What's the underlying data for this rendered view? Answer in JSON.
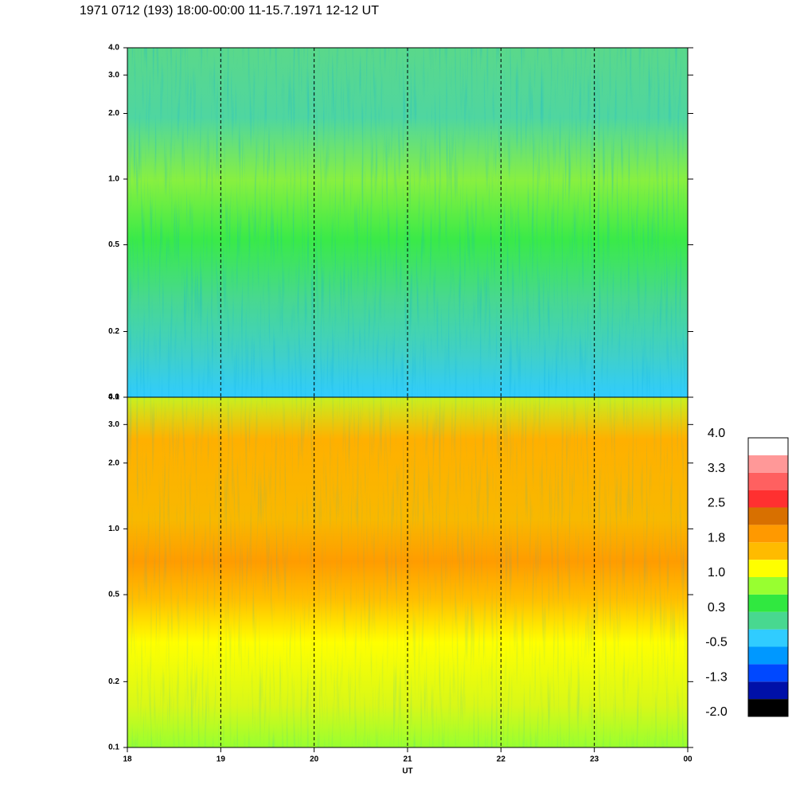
{
  "chart_data": {
    "type": "spectrogram",
    "title": "1971 0712 (193) 18:00-00:00 11-15.7.1971  12-12 UT",
    "xlabel": "UT",
    "xlim": [
      18,
      24
    ],
    "xticks": [
      18,
      19,
      20,
      21,
      22,
      23,
      {
        "value": 24,
        "label": "00"
      }
    ],
    "log_y": true,
    "grid": true,
    "panels": [
      {
        "ylim": [
          0.1,
          4
        ],
        "yticks": [
          0.1,
          0.2,
          0.5,
          {
            "value": 1,
            "label": "1.0"
          },
          {
            "value": 2,
            "label": "2.0"
          },
          {
            "value": 3,
            "label": "3.0"
          },
          {
            "value": 4,
            "label": "4.0"
          }
        ]
      },
      {
        "ylim": [
          0.1,
          4
        ],
        "yticks": [
          0.1,
          0.2,
          0.5,
          {
            "value": 1,
            "label": "1.0"
          },
          {
            "value": 2,
            "label": "2.0"
          },
          {
            "value": 3,
            "label": "3.0"
          },
          {
            "value": 4,
            "label": "4.0"
          }
        ]
      }
    ],
    "colorbar": {
      "lim": [
        -2,
        4
      ],
      "ticks": [
        {
          "value": 4,
          "label": "4.0"
        },
        {
          "value": 3.25,
          "label": "3.3"
        },
        2.5,
        {
          "value": 1.75,
          "label": "1.8"
        },
        {
          "value": 1,
          "label": "1.0"
        },
        {
          "value": 0.25,
          "label": "0.3"
        },
        -0.5,
        {
          "value": -1.25,
          "label": "-1.3"
        },
        {
          "value": -2,
          "label": "-2.0"
        }
      ],
      "colors": [
        "#000000",
        "#0010a8",
        "#0048ff",
        "#0098ff",
        "#30ccff",
        "#48d890",
        "#30e840",
        "#98ff30",
        "#ffff00",
        "#ffbb00",
        "#ff9900",
        "#d87000",
        "#ff3030",
        "#ff6060",
        "#ff9898",
        "#ffffff"
      ]
    }
  }
}
